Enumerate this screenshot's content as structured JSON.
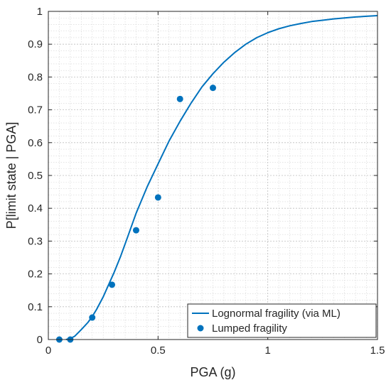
{
  "chart_data": {
    "type": "line",
    "xlabel": "PGA (g)",
    "ylabel": "P[limit state | PGA]",
    "xlim": [
      0,
      1.5
    ],
    "ylim": [
      0,
      1
    ],
    "x_ticks": [
      0,
      0.5,
      1,
      1.5
    ],
    "x_tick_labels": [
      "0",
      "0.5",
      "1",
      "1.5"
    ],
    "y_ticks": [
      0,
      0.1,
      0.2,
      0.3,
      0.4,
      0.5,
      0.6,
      0.7,
      0.8,
      0.9,
      1
    ],
    "y_tick_labels": [
      "0",
      "0.1",
      "0.2",
      "0.3",
      "0.4",
      "0.5",
      "0.6",
      "0.7",
      "0.8",
      "0.9",
      "1"
    ],
    "grid": true,
    "minor_grid": true,
    "legend": "bottom-right",
    "series": [
      {
        "name": "Lognormal fragility (via ML)",
        "kind": "line",
        "color": "#0072BD",
        "x": [
          0.08,
          0.1,
          0.12,
          0.15,
          0.18,
          0.2,
          0.22,
          0.25,
          0.28,
          0.3,
          0.33,
          0.36,
          0.4,
          0.45,
          0.5,
          0.55,
          0.6,
          0.65,
          0.7,
          0.75,
          0.8,
          0.85,
          0.9,
          0.95,
          1.0,
          1.05,
          1.1,
          1.15,
          1.2,
          1.25,
          1.3,
          1.35,
          1.4,
          1.45,
          1.5
        ],
        "y": [
          0.0,
          0.003,
          0.01,
          0.03,
          0.052,
          0.07,
          0.092,
          0.13,
          0.175,
          0.205,
          0.255,
          0.31,
          0.385,
          0.465,
          0.535,
          0.605,
          0.665,
          0.72,
          0.77,
          0.81,
          0.845,
          0.875,
          0.9,
          0.92,
          0.935,
          0.947,
          0.956,
          0.963,
          0.969,
          0.973,
          0.977,
          0.98,
          0.983,
          0.985,
          0.987
        ]
      },
      {
        "name": "Lumped fragility",
        "kind": "scatter",
        "color": "#0072BD",
        "x": [
          0.05,
          0.1,
          0.2,
          0.29,
          0.4,
          0.5,
          0.6,
          0.75
        ],
        "y": [
          0.0,
          0.0,
          0.067,
          0.167,
          0.333,
          0.433,
          0.733,
          0.767
        ]
      }
    ]
  }
}
